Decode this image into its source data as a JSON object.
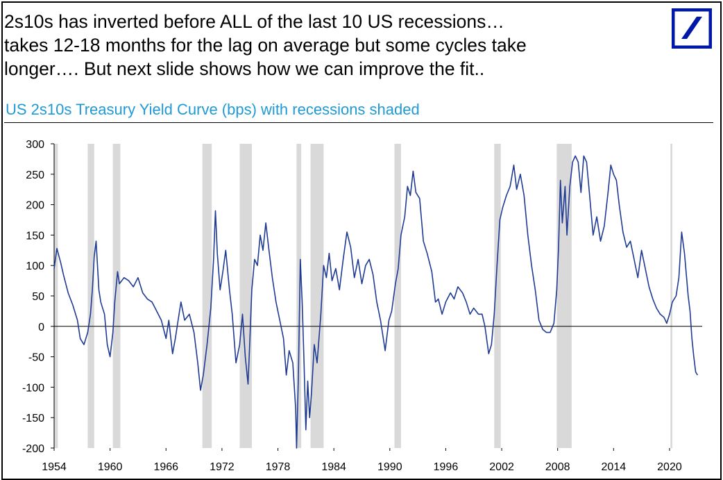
{
  "headline": [
    "2s10s has inverted before ALL of the last 10 US recessions…",
    "takes 12-18 months for the lag on average but some cycles take",
    "longer…. But next slide shows how we can improve the fit.."
  ],
  "logo_icon": "deutsche-bank-slash-logo",
  "colors": {
    "line": "#1f3a93",
    "subtitle": "#1f9ad6",
    "shade": "#d9d9d9",
    "logo": "#0018a8"
  },
  "chart_data": {
    "type": "line",
    "title": "US 2s10s Treasury Yield Curve (bps) with recessions shaded",
    "xlabel": "",
    "ylabel": "bps",
    "xlim": [
      1954,
      2023.5
    ],
    "ylim": [
      -200,
      300
    ],
    "y_ticks": [
      "300",
      "250",
      "200",
      "150",
      "100",
      "50",
      "0",
      "-50",
      "-100",
      "-150",
      "-200"
    ],
    "x_ticks": [
      "1954",
      "1960",
      "1966",
      "1972",
      "1978",
      "1984",
      "1990",
      "1996",
      "2002",
      "2008",
      "2014",
      "2020"
    ],
    "recessions": [
      [
        1953.6,
        1954.4
      ],
      [
        1957.6,
        1958.3
      ],
      [
        1960.3,
        1961.1
      ],
      [
        1969.9,
        1970.9
      ],
      [
        1973.9,
        1975.2
      ],
      [
        1980.0,
        1980.5
      ],
      [
        1981.5,
        1982.9
      ],
      [
        1990.5,
        1991.2
      ],
      [
        2001.2,
        2001.9
      ],
      [
        2007.9,
        2009.5
      ],
      [
        2020.1,
        2020.3
      ]
    ],
    "series": [
      {
        "name": "US 2s10s",
        "points": [
          [
            1954.0,
            95
          ],
          [
            1954.3,
            128
          ],
          [
            1954.7,
            105
          ],
          [
            1955.0,
            85
          ],
          [
            1955.5,
            55
          ],
          [
            1956.0,
            35
          ],
          [
            1956.5,
            10
          ],
          [
            1956.8,
            -20
          ],
          [
            1957.2,
            -30
          ],
          [
            1957.6,
            -10
          ],
          [
            1957.9,
            20
          ],
          [
            1958.1,
            60
          ],
          [
            1958.3,
            115
          ],
          [
            1958.5,
            140
          ],
          [
            1958.8,
            60
          ],
          [
            1959.0,
            40
          ],
          [
            1959.4,
            20
          ],
          [
            1959.7,
            -30
          ],
          [
            1960.0,
            -50
          ],
          [
            1960.3,
            -10
          ],
          [
            1960.5,
            40
          ],
          [
            1960.8,
            90
          ],
          [
            1961.0,
            70
          ],
          [
            1961.5,
            80
          ],
          [
            1962.0,
            75
          ],
          [
            1962.5,
            65
          ],
          [
            1963.0,
            80
          ],
          [
            1963.5,
            55
          ],
          [
            1964.0,
            45
          ],
          [
            1964.5,
            40
          ],
          [
            1965.0,
            25
          ],
          [
            1965.5,
            10
          ],
          [
            1966.0,
            -20
          ],
          [
            1966.3,
            10
          ],
          [
            1966.7,
            -45
          ],
          [
            1967.0,
            -20
          ],
          [
            1967.3,
            10
          ],
          [
            1967.6,
            40
          ],
          [
            1968.0,
            10
          ],
          [
            1968.5,
            20
          ],
          [
            1969.0,
            -10
          ],
          [
            1969.4,
            -60
          ],
          [
            1969.7,
            -105
          ],
          [
            1970.0,
            -80
          ],
          [
            1970.4,
            -30
          ],
          [
            1970.8,
            30
          ],
          [
            1971.1,
            110
          ],
          [
            1971.3,
            190
          ],
          [
            1971.5,
            120
          ],
          [
            1971.8,
            60
          ],
          [
            1972.1,
            90
          ],
          [
            1972.4,
            125
          ],
          [
            1972.8,
            60
          ],
          [
            1973.1,
            20
          ],
          [
            1973.5,
            -60
          ],
          [
            1973.9,
            -30
          ],
          [
            1974.2,
            20
          ],
          [
            1974.5,
            -50
          ],
          [
            1974.8,
            -95
          ],
          [
            1975.0,
            -20
          ],
          [
            1975.2,
            60
          ],
          [
            1975.5,
            110
          ],
          [
            1975.8,
            100
          ],
          [
            1976.1,
            150
          ],
          [
            1976.4,
            125
          ],
          [
            1976.7,
            170
          ],
          [
            1977.0,
            130
          ],
          [
            1977.4,
            80
          ],
          [
            1977.8,
            40
          ],
          [
            1978.2,
            10
          ],
          [
            1978.6,
            -20
          ],
          [
            1978.9,
            -80
          ],
          [
            1979.2,
            -40
          ],
          [
            1979.6,
            -60
          ],
          [
            1979.9,
            -135
          ],
          [
            1980.0,
            -200
          ],
          [
            1980.2,
            -80
          ],
          [
            1980.4,
            110
          ],
          [
            1980.6,
            40
          ],
          [
            1980.8,
            -60
          ],
          [
            1981.0,
            -170
          ],
          [
            1981.2,
            -90
          ],
          [
            1981.4,
            -150
          ],
          [
            1981.6,
            -110
          ],
          [
            1981.9,
            -30
          ],
          [
            1982.2,
            -60
          ],
          [
            1982.6,
            20
          ],
          [
            1982.9,
            100
          ],
          [
            1983.2,
            80
          ],
          [
            1983.5,
            120
          ],
          [
            1983.8,
            75
          ],
          [
            1984.2,
            95
          ],
          [
            1984.6,
            60
          ],
          [
            1985.0,
            110
          ],
          [
            1985.4,
            155
          ],
          [
            1985.8,
            130
          ],
          [
            1986.2,
            80
          ],
          [
            1986.6,
            110
          ],
          [
            1987.0,
            70
          ],
          [
            1987.4,
            100
          ],
          [
            1987.8,
            110
          ],
          [
            1988.2,
            85
          ],
          [
            1988.6,
            40
          ],
          [
            1989.0,
            10
          ],
          [
            1989.5,
            -40
          ],
          [
            1989.9,
            10
          ],
          [
            1990.2,
            25
          ],
          [
            1990.6,
            70
          ],
          [
            1990.9,
            95
          ],
          [
            1991.2,
            150
          ],
          [
            1991.6,
            180
          ],
          [
            1991.9,
            230
          ],
          [
            1992.2,
            215
          ],
          [
            1992.5,
            255
          ],
          [
            1992.8,
            220
          ],
          [
            1993.2,
            210
          ],
          [
            1993.6,
            140
          ],
          [
            1994.0,
            120
          ],
          [
            1994.5,
            90
          ],
          [
            1994.9,
            40
          ],
          [
            1995.2,
            45
          ],
          [
            1995.6,
            20
          ],
          [
            1996.0,
            40
          ],
          [
            1996.5,
            55
          ],
          [
            1996.9,
            45
          ],
          [
            1997.3,
            65
          ],
          [
            1997.8,
            55
          ],
          [
            1998.2,
            40
          ],
          [
            1998.6,
            20
          ],
          [
            1999.0,
            30
          ],
          [
            1999.5,
            20
          ],
          [
            1999.9,
            20
          ],
          [
            2000.2,
            0
          ],
          [
            2000.6,
            -45
          ],
          [
            2000.9,
            -30
          ],
          [
            2001.2,
            20
          ],
          [
            2001.5,
            100
          ],
          [
            2001.8,
            175
          ],
          [
            2002.1,
            195
          ],
          [
            2002.5,
            215
          ],
          [
            2002.9,
            230
          ],
          [
            2003.3,
            265
          ],
          [
            2003.6,
            225
          ],
          [
            2004.0,
            250
          ],
          [
            2004.4,
            215
          ],
          [
            2004.8,
            150
          ],
          [
            2005.2,
            100
          ],
          [
            2005.6,
            60
          ],
          [
            2006.0,
            10
          ],
          [
            2006.4,
            -5
          ],
          [
            2006.8,
            -10
          ],
          [
            2007.2,
            -10
          ],
          [
            2007.6,
            5
          ],
          [
            2007.9,
            60
          ],
          [
            2008.1,
            130
          ],
          [
            2008.3,
            240
          ],
          [
            2008.5,
            170
          ],
          [
            2008.8,
            230
          ],
          [
            2009.0,
            150
          ],
          [
            2009.3,
            230
          ],
          [
            2009.6,
            270
          ],
          [
            2009.9,
            280
          ],
          [
            2010.2,
            270
          ],
          [
            2010.5,
            220
          ],
          [
            2010.8,
            280
          ],
          [
            2011.1,
            270
          ],
          [
            2011.4,
            220
          ],
          [
            2011.8,
            150
          ],
          [
            2012.2,
            180
          ],
          [
            2012.6,
            140
          ],
          [
            2013.0,
            165
          ],
          [
            2013.4,
            220
          ],
          [
            2013.7,
            265
          ],
          [
            2014.0,
            250
          ],
          [
            2014.3,
            240
          ],
          [
            2014.6,
            200
          ],
          [
            2015.0,
            155
          ],
          [
            2015.4,
            130
          ],
          [
            2015.8,
            140
          ],
          [
            2016.2,
            110
          ],
          [
            2016.6,
            80
          ],
          [
            2017.0,
            125
          ],
          [
            2017.4,
            95
          ],
          [
            2017.8,
            65
          ],
          [
            2018.2,
            45
          ],
          [
            2018.6,
            30
          ],
          [
            2019.0,
            20
          ],
          [
            2019.4,
            15
          ],
          [
            2019.7,
            5
          ],
          [
            2020.0,
            20
          ],
          [
            2020.3,
            40
          ],
          [
            2020.7,
            50
          ],
          [
            2021.0,
            80
          ],
          [
            2021.3,
            155
          ],
          [
            2021.6,
            120
          ],
          [
            2022.0,
            50
          ],
          [
            2022.2,
            25
          ],
          [
            2022.4,
            -20
          ],
          [
            2022.6,
            -50
          ],
          [
            2022.8,
            -75
          ],
          [
            2023.0,
            -80
          ]
        ]
      }
    ]
  }
}
